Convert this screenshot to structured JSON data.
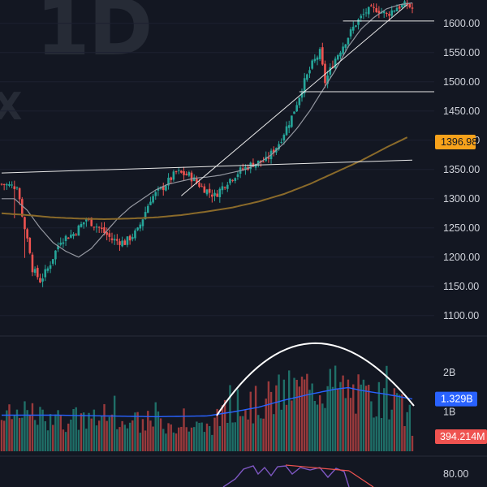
{
  "watermark": {
    "interval": "1D",
    "symbol_fragment": "X"
  },
  "colors": {
    "background": "#131722",
    "up": "#26a69a",
    "down": "#ef5350",
    "ma_fast": "#9598a1",
    "ma_slow": "#8a6a2a",
    "vol_ma": "#2962ff",
    "price_tag": "#f7a21b",
    "vol_tag": "#2962ff",
    "vol_last_tag": "#ef5350",
    "osc": "#7e57c2"
  },
  "chart_data": [
    {
      "type": "candlestick",
      "title": "",
      "ylim": [
        1065,
        1640
      ],
      "yticks": [
        "1100.00",
        "1150.00",
        "1200.00",
        "1250.00",
        "1300.00",
        "1350.00",
        "1400.00",
        "1450.00",
        "1500.00",
        "1550.00",
        "1600.00"
      ],
      "ytick_values": [
        1100,
        1150,
        1200,
        1250,
        1300,
        1350,
        1400,
        1450,
        1500,
        1550,
        1600
      ],
      "last_value_label": "1396.98",
      "last_value": 1396.98,
      "anchors": [
        [
          0,
          1325
        ],
        [
          6,
          1320
        ],
        [
          9,
          1250
        ],
        [
          12,
          1180
        ],
        [
          15,
          1160
        ],
        [
          18,
          1180
        ],
        [
          23,
          1230
        ],
        [
          28,
          1240
        ],
        [
          33,
          1265
        ],
        [
          38,
          1250
        ],
        [
          43,
          1230
        ],
        [
          48,
          1225
        ],
        [
          53,
          1245
        ],
        [
          58,
          1300
        ],
        [
          63,
          1320
        ],
        [
          68,
          1345
        ],
        [
          73,
          1340
        ],
        [
          78,
          1320
        ],
        [
          83,
          1305
        ],
        [
          88,
          1330
        ],
        [
          93,
          1348
        ],
        [
          98,
          1360
        ],
        [
          103,
          1365
        ],
        [
          108,
          1395
        ],
        [
          113,
          1440
        ],
        [
          118,
          1500
        ],
        [
          121,
          1530
        ],
        [
          124,
          1550
        ],
        [
          126,
          1500
        ],
        [
          130,
          1540
        ],
        [
          134,
          1570
        ],
        [
          138,
          1600
        ],
        [
          142,
          1620
        ],
        [
          146,
          1625
        ],
        [
          150,
          1615
        ],
        [
          154,
          1628
        ],
        [
          158,
          1632
        ],
        [
          160,
          1625
        ]
      ],
      "ma_fast_anchors": [
        [
          0,
          1300
        ],
        [
          5,
          1300
        ],
        [
          10,
          1280
        ],
        [
          15,
          1250
        ],
        [
          20,
          1225
        ],
        [
          25,
          1210
        ],
        [
          30,
          1200
        ],
        [
          35,
          1215
        ],
        [
          40,
          1240
        ],
        [
          45,
          1265
        ],
        [
          50,
          1285
        ],
        [
          55,
          1300
        ],
        [
          60,
          1315
        ],
        [
          65,
          1325
        ],
        [
          70,
          1330
        ],
        [
          75,
          1335
        ],
        [
          80,
          1337
        ],
        [
          85,
          1340
        ],
        [
          90,
          1345
        ],
        [
          95,
          1350
        ],
        [
          100,
          1360
        ],
        [
          105,
          1375
        ],
        [
          110,
          1395
        ],
        [
          115,
          1420
        ],
        [
          120,
          1450
        ],
        [
          125,
          1485
        ],
        [
          130,
          1520
        ],
        [
          135,
          1560
        ],
        [
          140,
          1590
        ],
        [
          145,
          1610
        ],
        [
          150,
          1625
        ],
        [
          155,
          1632
        ],
        [
          160,
          1635
        ]
      ],
      "ma_slow_anchors": [
        [
          0,
          1275
        ],
        [
          10,
          1272
        ],
        [
          20,
          1268
        ],
        [
          30,
          1266
        ],
        [
          40,
          1265
        ],
        [
          50,
          1266
        ],
        [
          60,
          1268
        ],
        [
          70,
          1272
        ],
        [
          80,
          1278
        ],
        [
          90,
          1285
        ],
        [
          100,
          1295
        ],
        [
          110,
          1308
        ],
        [
          120,
          1325
        ],
        [
          130,
          1345
        ],
        [
          140,
          1365
        ],
        [
          150,
          1388
        ],
        [
          158,
          1405
        ]
      ],
      "horizontal_lines": [
        1604,
        1483
      ],
      "trend_lines": [
        {
          "from": [
            0,
            1344
          ],
          "to": [
            160,
            1366
          ]
        },
        {
          "from": [
            70,
            1305
          ],
          "to": [
            158,
            1632
          ]
        }
      ]
    },
    {
      "type": "bar",
      "title": "",
      "series": [
        {
          "name": "",
          "values_note": ""
        }
      ],
      "ylim": [
        0,
        2.85
      ],
      "yticks": [
        "1B",
        "2B"
      ],
      "ytick_values": [
        1,
        2
      ],
      "vol_ma_label": "1.329B",
      "vol_ma_value": 1.329,
      "last_volume_label": "394.214M",
      "last_volume_value": 0.394,
      "anchors": [
        [
          0,
          0.9
        ],
        [
          10,
          1.0
        ],
        [
          20,
          0.85
        ],
        [
          30,
          0.9
        ],
        [
          40,
          0.8
        ],
        [
          50,
          0.75
        ],
        [
          60,
          0.82
        ],
        [
          70,
          0.7
        ],
        [
          80,
          0.65
        ],
        [
          85,
          0.9
        ],
        [
          90,
          1.2
        ],
        [
          95,
          1.25
        ],
        [
          100,
          1.3
        ],
        [
          105,
          1.45
        ],
        [
          110,
          1.6
        ],
        [
          115,
          1.7
        ],
        [
          120,
          1.75
        ],
        [
          125,
          1.8
        ],
        [
          130,
          1.78
        ],
        [
          135,
          1.65
        ],
        [
          140,
          1.5
        ],
        [
          145,
          1.4
        ],
        [
          150,
          1.3
        ],
        [
          155,
          1.2
        ],
        [
          160,
          0.9
        ]
      ],
      "vol_ma_anchors": [
        [
          0,
          0.92
        ],
        [
          20,
          0.92
        ],
        [
          40,
          0.9
        ],
        [
          60,
          0.88
        ],
        [
          80,
          0.9
        ],
        [
          90,
          1.0
        ],
        [
          100,
          1.12
        ],
        [
          110,
          1.3
        ],
        [
          120,
          1.45
        ],
        [
          130,
          1.58
        ],
        [
          135,
          1.62
        ],
        [
          140,
          1.55
        ],
        [
          150,
          1.45
        ],
        [
          160,
          1.33
        ]
      ]
    },
    {
      "type": "line",
      "title": "",
      "yticks": [
        "80.00"
      ],
      "ytick_values": [
        80
      ],
      "ylim": [
        60,
        100
      ]
    }
  ]
}
